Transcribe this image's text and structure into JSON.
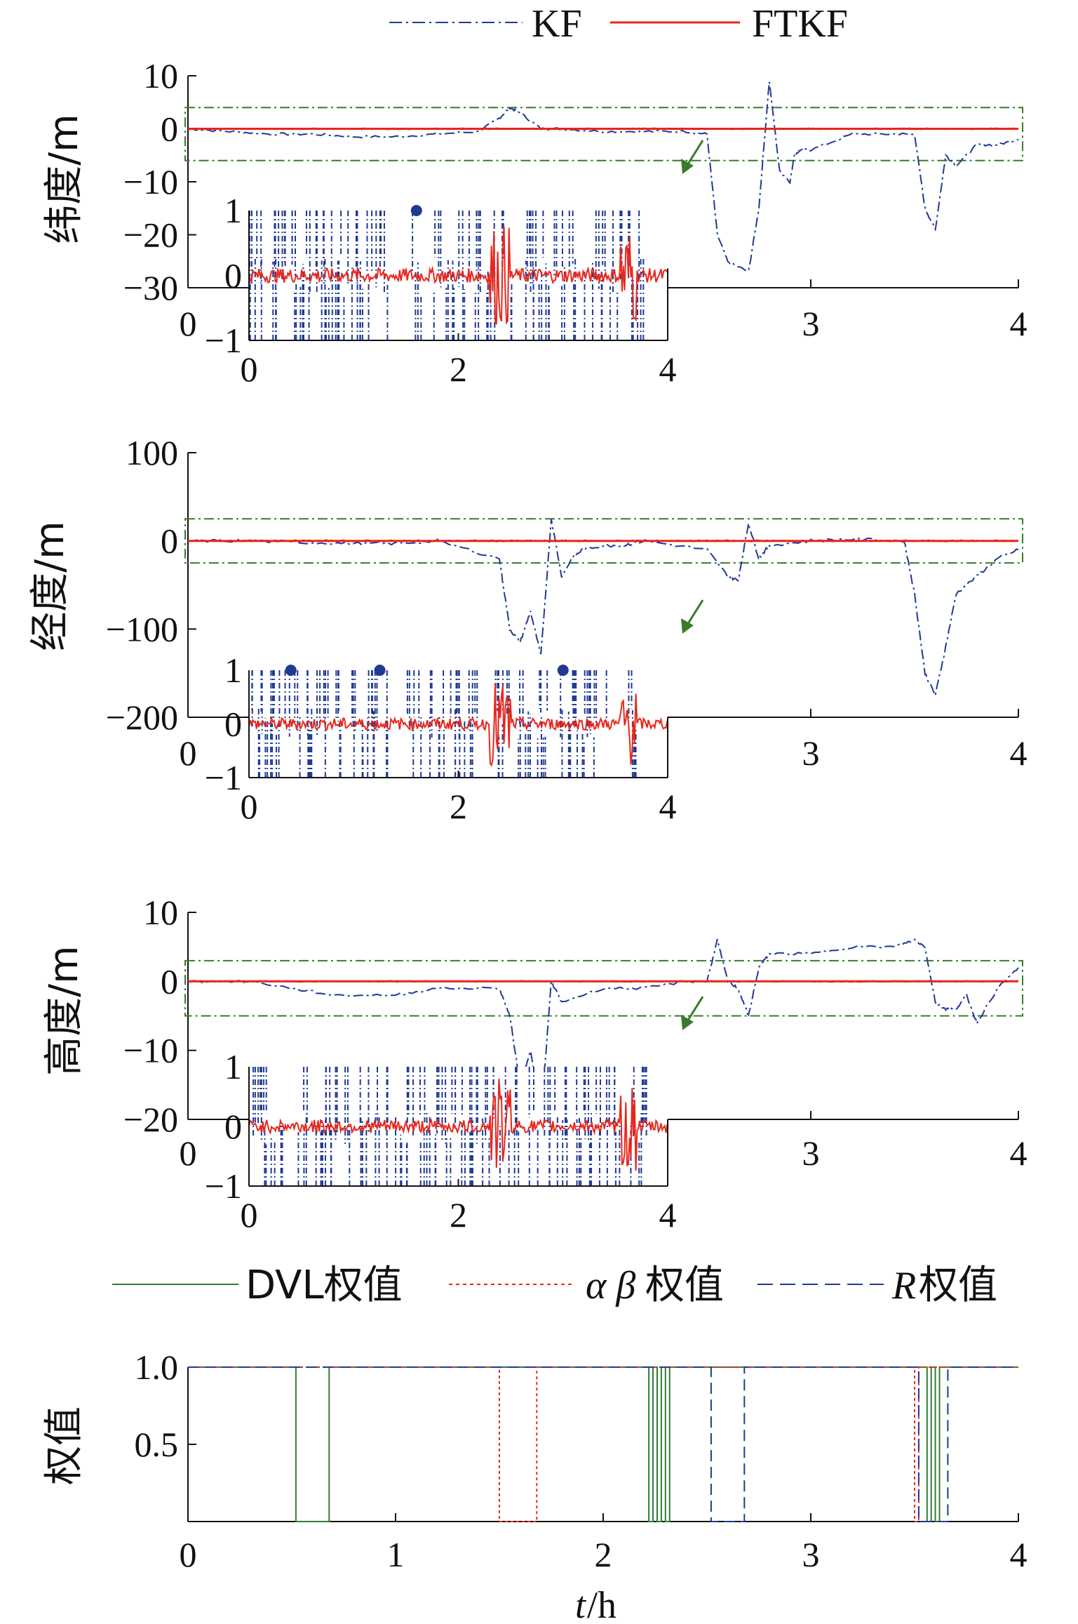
{
  "chart_data": [
    {
      "type": "line",
      "id": "latitude",
      "ylabel": "纬度/m",
      "xlim": [
        0,
        4
      ],
      "ylim": [
        -30,
        10
      ],
      "yticks": [
        10,
        0,
        -10,
        -20,
        -30
      ],
      "xticks_visible": [
        0,
        3,
        4
      ],
      "legend": [
        "KF",
        "FTKF"
      ],
      "band": [
        -6,
        4
      ],
      "series": [
        {
          "name": "KF",
          "color": "#1f3a93",
          "style": "dashdot",
          "x": [
            0,
            0.2,
            0.4,
            0.6,
            0.8,
            1.0,
            1.2,
            1.4,
            1.5,
            1.55,
            1.6,
            1.7,
            1.8,
            2.0,
            2.2,
            2.4,
            2.5,
            2.55,
            2.6,
            2.7,
            2.75,
            2.8,
            2.85,
            2.9,
            2.92,
            2.95,
            3.0,
            3.2,
            3.4,
            3.5,
            3.55,
            3.6,
            3.65,
            3.7,
            3.8,
            3.9,
            4.0
          ],
          "y": [
            0,
            -0.5,
            -1,
            -1,
            -1.5,
            -1.5,
            -1,
            -0.5,
            2,
            4,
            3,
            0,
            0,
            -0.5,
            -0.5,
            -0.5,
            -1,
            -20,
            -25,
            -27,
            -15,
            9,
            -8,
            -10,
            -5,
            -4,
            -4,
            -1,
            -1,
            -1,
            -15,
            -19,
            -5,
            -7,
            -3,
            -3,
            -2
          ]
        },
        {
          "name": "FTKF",
          "color": "#e8271c",
          "style": "solid",
          "x": [
            0,
            4
          ],
          "y": [
            0,
            0
          ]
        }
      ],
      "inset": {
        "xlim": [
          0,
          4
        ],
        "ylim": [
          -1,
          1
        ],
        "xticks": [
          0,
          2,
          4
        ],
        "yticks": [
          1,
          0,
          -1
        ],
        "markers": [
          1.6
        ]
      }
    },
    {
      "type": "line",
      "id": "longitude",
      "ylabel": "经度/m",
      "xlim": [
        0,
        4
      ],
      "ylim": [
        -200,
        100
      ],
      "yticks": [
        100,
        0,
        -100,
        -200
      ],
      "xticks_visible": [
        0,
        3,
        4
      ],
      "band": [
        -25,
        25
      ],
      "series": [
        {
          "name": "KF",
          "color": "#1f3a93",
          "style": "dashdot",
          "x": [
            0,
            0.3,
            0.6,
            0.8,
            1.0,
            1.2,
            1.5,
            1.55,
            1.6,
            1.65,
            1.7,
            1.75,
            1.8,
            1.85,
            1.9,
            2.0,
            2.1,
            2.2,
            2.5,
            2.6,
            2.65,
            2.7,
            2.75,
            2.8,
            3.0,
            3.2,
            3.45,
            3.5,
            3.55,
            3.6,
            3.65,
            3.7,
            3.8,
            3.9,
            4.0
          ],
          "y": [
            0,
            0,
            -2,
            -3,
            -3,
            0,
            -20,
            -100,
            -115,
            -80,
            -130,
            25,
            -40,
            -20,
            -10,
            -5,
            -5,
            0,
            -10,
            -40,
            -45,
            20,
            -20,
            -5,
            0,
            2,
            0,
            -60,
            -150,
            -175,
            -120,
            -60,
            -40,
            -20,
            -10
          ]
        },
        {
          "name": "FTKF",
          "color": "#e8271c",
          "style": "solid",
          "x": [
            0,
            4
          ],
          "y": [
            0,
            0
          ]
        }
      ],
      "inset": {
        "xlim": [
          0,
          4
        ],
        "ylim": [
          -1,
          1
        ],
        "xticks": [
          0,
          2,
          4
        ],
        "yticks": [
          1,
          0,
          -1
        ],
        "markers": [
          0.4,
          1.25,
          3.0
        ]
      }
    },
    {
      "type": "line",
      "id": "height",
      "ylabel": "高度/m",
      "xlim": [
        0,
        4
      ],
      "ylim": [
        -20,
        10
      ],
      "yticks": [
        10,
        0,
        -10,
        -20
      ],
      "xticks_visible": [
        0,
        3,
        4
      ],
      "band": [
        -5,
        3
      ],
      "series": [
        {
          "name": "KF",
          "color": "#1f3a93",
          "style": "dashdot",
          "x": [
            0,
            0.3,
            0.5,
            0.7,
            1.0,
            1.2,
            1.5,
            1.55,
            1.6,
            1.65,
            1.7,
            1.75,
            1.8,
            2.0,
            2.2,
            2.4,
            2.5,
            2.55,
            2.6,
            2.65,
            2.7,
            2.75,
            2.8,
            3.0,
            3.2,
            3.4,
            3.5,
            3.55,
            3.6,
            3.65,
            3.7,
            3.75,
            3.8,
            3.9,
            4.0
          ],
          "y": [
            0,
            0,
            -1,
            -2,
            -2,
            -1,
            -1,
            -5,
            -15,
            -10,
            -20,
            0,
            -3,
            -1,
            -1,
            0,
            0,
            6,
            0,
            -1,
            -5,
            2,
            4,
            4,
            5,
            5,
            6,
            5,
            -3,
            -4,
            -4,
            -2,
            -6,
            -1,
            2
          ]
        },
        {
          "name": "FTKF",
          "color": "#e8271c",
          "style": "solid",
          "x": [
            0,
            4
          ],
          "y": [
            0,
            0
          ]
        }
      ],
      "inset": {
        "xlim": [
          0,
          4
        ],
        "ylim": [
          -1,
          1
        ],
        "xticks": [
          0,
          2,
          4
        ],
        "yticks": [
          1,
          0,
          -1
        ],
        "markers": []
      }
    },
    {
      "type": "line",
      "id": "weights",
      "ylabel": "权值",
      "xlabel_italic": "t",
      "xlabel_rest": "/h",
      "xlim": [
        0,
        4
      ],
      "ylim": [
        0,
        1.0
      ],
      "yticks_labels": [
        "1.0",
        "0.5"
      ],
      "yticks": [
        1.0,
        0.5
      ],
      "xticks": [
        0,
        1,
        2,
        3,
        4
      ],
      "legend_labels": {
        "dvl": "DVL权值",
        "ab_greek": "α β",
        "ab_suffix": "权值",
        "r_italic": "R",
        "r_suffix": "权值"
      },
      "series": [
        {
          "name": "DVL权值",
          "color": "#2e7d32",
          "style": "solid",
          "x": [
            0,
            0.52,
            0.52,
            0.68,
            0.68,
            2.22,
            2.22,
            2.24,
            2.24,
            2.26,
            2.26,
            2.28,
            2.28,
            2.3,
            2.3,
            2.32,
            2.32,
            3.56,
            3.56,
            3.58,
            3.58,
            3.6,
            3.6,
            3.62,
            3.62,
            4.0
          ],
          "y": [
            1,
            1,
            0,
            0,
            1,
            1,
            0,
            0,
            1,
            1,
            0,
            0,
            1,
            1,
            0,
            0,
            1,
            1,
            0,
            0,
            1,
            1,
            0,
            0,
            1,
            1
          ]
        },
        {
          "name": "αβ权值",
          "color": "#e8271c",
          "style": "dotted",
          "x": [
            0,
            1.5,
            1.5,
            1.68,
            1.68,
            3.5,
            3.5,
            3.52,
            3.52,
            4.0
          ],
          "y": [
            1,
            1,
            0,
            0,
            1,
            1,
            0,
            0,
            1,
            1
          ]
        },
        {
          "name": "R权值",
          "color": "#1f3a93",
          "style": "dashed",
          "x": [
            0,
            2.52,
            2.52,
            2.68,
            2.68,
            3.52,
            3.52,
            3.66,
            3.66,
            4.0
          ],
          "y": [
            1,
            1,
            0,
            0,
            1,
            1,
            0,
            0,
            1,
            1
          ]
        }
      ]
    }
  ]
}
